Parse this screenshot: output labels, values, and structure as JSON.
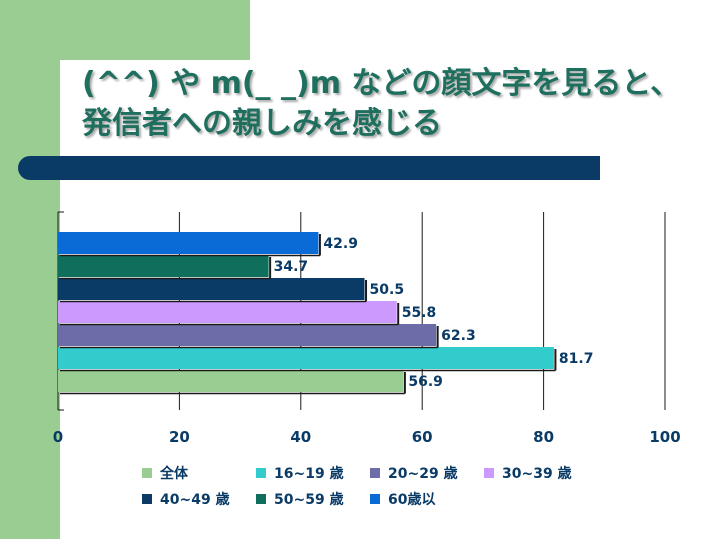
{
  "slide": {
    "title": "(^^) や m(_ _)m などの顔文字を見ると、発信者への親しみを感じる",
    "colors": {
      "band": "#9acd92",
      "rule": "#0a3a66",
      "title": "#1f6f5e"
    }
  },
  "chart_data": {
    "type": "bar",
    "orientation": "horizontal",
    "categories": [
      "全体",
      "16~19 歳",
      "20~29 歳",
      "30~39 歳",
      "40~49 歳",
      "50~59 歳",
      "60歳以"
    ],
    "values": [
      56.9,
      81.7,
      62.3,
      55.8,
      50.5,
      34.7,
      42.9
    ],
    "value_labels": [
      "56.9",
      "81.7",
      "62.3",
      "55.8",
      "50.5",
      "34.7",
      "42.9"
    ],
    "colors": [
      "#9acd92",
      "#33cccc",
      "#6c6ca8",
      "#cc99ff",
      "#0a3a66",
      "#0f6f5c",
      "#0a6ad6"
    ],
    "xlim": [
      0,
      100
    ],
    "xticks": [
      "0",
      "20",
      "40",
      "60",
      "80",
      "100"
    ],
    "grid": true,
    "legend_position": "bottom",
    "title": "",
    "xlabel": "",
    "ylabel": ""
  }
}
